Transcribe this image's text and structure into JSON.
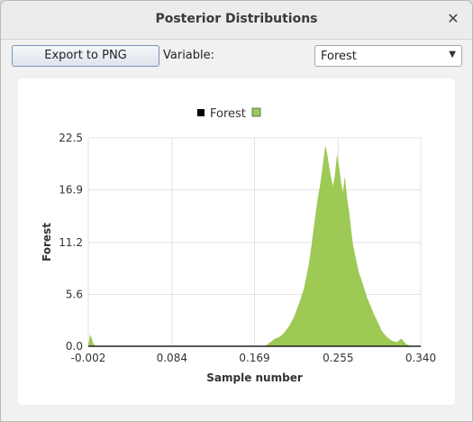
{
  "window": {
    "title": "Posterior Distributions"
  },
  "toolbar": {
    "export_label": "Export to PNG",
    "variable_label": "Variable:",
    "variable_selected": "Forest"
  },
  "colors": {
    "series_fill": "#9dc955",
    "legend_marker_black": "#000000"
  },
  "icons": {
    "close": "close-icon",
    "dropdown": "chevron-down-icon"
  },
  "chart_data": {
    "type": "area",
    "title": "",
    "xlabel": "Sample number",
    "ylabel": "Forest",
    "xlim": [
      -0.002,
      0.34
    ],
    "ylim": [
      0.0,
      22.5
    ],
    "x_ticks": [
      "-0.002",
      "0.084",
      "0.169",
      "0.255",
      "0.340"
    ],
    "y_ticks": [
      "0.0",
      "5.6",
      "11.2",
      "16.9",
      "22.5"
    ],
    "grid": true,
    "legend": {
      "position": "top-center",
      "entries": [
        "Forest"
      ]
    },
    "series": [
      {
        "name": "Forest",
        "x": [
          -0.002,
          0.0,
          0.001,
          0.003,
          0.005,
          0.18,
          0.185,
          0.19,
          0.195,
          0.2,
          0.205,
          0.21,
          0.215,
          0.22,
          0.225,
          0.228,
          0.231,
          0.234,
          0.237,
          0.24,
          0.242,
          0.244,
          0.246,
          0.248,
          0.25,
          0.252,
          0.254,
          0.256,
          0.258,
          0.26,
          0.262,
          0.264,
          0.266,
          0.268,
          0.27,
          0.273,
          0.276,
          0.28,
          0.284,
          0.288,
          0.292,
          0.296,
          0.3,
          0.305,
          0.31,
          0.315,
          0.32,
          0.325,
          0.33,
          0.335,
          0.34
        ],
        "y": [
          0.0,
          1.2,
          0.9,
          0.3,
          0.0,
          0.0,
          0.4,
          0.8,
          1.0,
          1.5,
          2.2,
          3.2,
          4.6,
          6.2,
          8.8,
          11.0,
          13.5,
          15.8,
          17.6,
          20.0,
          21.6,
          20.5,
          19.1,
          18.0,
          17.2,
          18.6,
          20.6,
          19.2,
          17.6,
          16.5,
          18.2,
          16.0,
          14.6,
          12.8,
          11.0,
          9.5,
          8.0,
          6.8,
          5.4,
          4.4,
          3.4,
          2.5,
          1.6,
          1.0,
          0.6,
          0.4,
          0.8,
          0.2,
          0.0,
          0.0,
          0.0
        ]
      }
    ]
  }
}
